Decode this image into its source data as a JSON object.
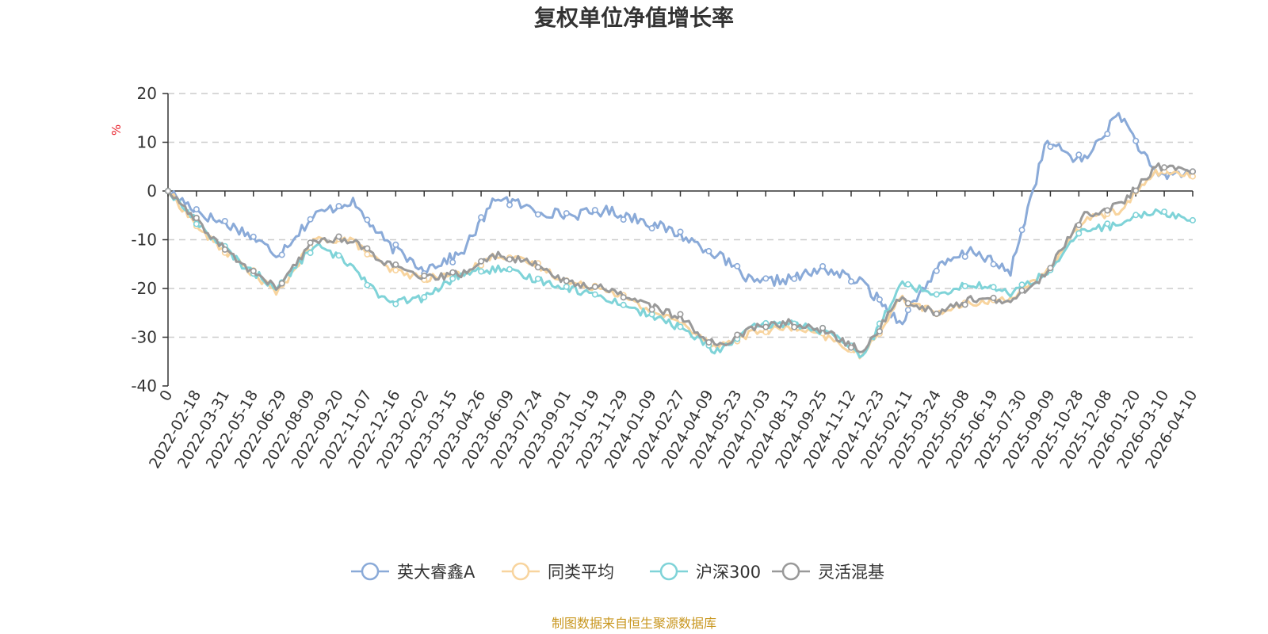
{
  "chart_data": {
    "type": "line",
    "title": "复权单位净值增长率",
    "ylabel": "%",
    "ylim": [
      -40,
      20
    ],
    "yticks": [
      "20",
      "10",
      "0",
      "-10",
      "-20",
      "-30",
      "-40"
    ],
    "grid": true,
    "legend_position": "bottom",
    "x_ticks": [
      "0",
      "2022-02-18",
      "2022-03-31",
      "2022-05-18",
      "2022-06-29",
      "2022-08-09",
      "2022-09-20",
      "2022-11-07",
      "2022-12-16",
      "2023-02-02",
      "2023-03-15",
      "2023-04-26",
      "2023-06-09",
      "2023-07-24",
      "2023-09-01",
      "2023-10-19",
      "2023-11-29",
      "2024-01-09",
      "2024-02-27",
      "2024-04-09",
      "2024-05-23",
      "2024-07-03",
      "2024-08-13",
      "2024-09-25",
      "2024-11-12",
      "2024-12-23",
      "2025-02-11",
      "2025-03-24",
      "2025-05-08",
      "2025-06-19",
      "2025-07-30",
      "2025-09-09",
      "2025-10-28",
      "2025-12-08",
      "2026-01-20",
      "2026-03-10",
      "2026-04-10"
    ],
    "series": [
      {
        "name": "英大睿鑫A",
        "color": "#8aaad8",
        "values": [
          0,
          -5,
          -8,
          -13,
          -5,
          -2,
          -11,
          -16,
          -13,
          -1,
          -4,
          -5,
          -4,
          -6,
          -9,
          -13,
          -19,
          -18,
          -16,
          -19,
          -27,
          -16,
          -12,
          -17,
          10,
          6,
          16,
          3,
          4
        ]
      },
      {
        "name": "同类平均",
        "color": "#f8d49e",
        "values": [
          0,
          -9,
          -15,
          -21,
          -10,
          -10,
          -16,
          -18,
          -17,
          -13,
          -15,
          -19,
          -20,
          -24,
          -27,
          -32,
          -29,
          -28,
          -30,
          -34,
          -22,
          -25,
          -23,
          -22,
          -17,
          -6,
          -4,
          4,
          3
        ]
      },
      {
        "name": "沪深300",
        "color": "#7fd3d8",
        "values": [
          0,
          -8,
          -15,
          -20,
          -11,
          -15,
          -23,
          -22,
          -17,
          -16,
          -18,
          -20,
          -22,
          -25,
          -28,
          -33,
          -28,
          -27,
          -29,
          -34,
          -19,
          -21,
          -19,
          -21,
          -17,
          -8,
          -7,
          -4,
          -6
        ]
      },
      {
        "name": "灵活混基",
        "color": "#999999",
        "values": [
          0,
          -8,
          -15,
          -20,
          -10,
          -10,
          -15,
          -18,
          -17,
          -13,
          -15,
          -19,
          -20,
          -23,
          -26,
          -32,
          -28,
          -27,
          -29,
          -33,
          -22,
          -25,
          -22,
          -23,
          -17,
          -5,
          -3,
          5,
          4
        ]
      }
    ]
  },
  "source": "制图数据来自恒生聚源数据库"
}
